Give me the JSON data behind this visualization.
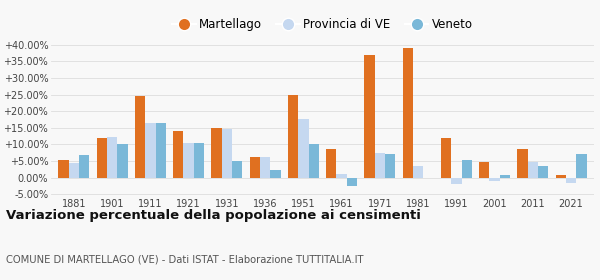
{
  "years": [
    1881,
    1901,
    1911,
    1921,
    1931,
    1936,
    1951,
    1961,
    1971,
    1981,
    1991,
    2001,
    2011,
    2021
  ],
  "martellago": [
    5.2,
    12.0,
    24.5,
    14.0,
    15.0,
    6.2,
    24.8,
    8.5,
    37.0,
    39.0,
    11.8,
    4.7,
    8.5,
    0.8
  ],
  "provincia_ve": [
    4.5,
    12.2,
    16.5,
    10.5,
    14.8,
    6.2,
    17.8,
    1.0,
    7.5,
    3.5,
    -2.0,
    -1.0,
    4.8,
    -1.5
  ],
  "veneto": [
    6.7,
    10.0,
    16.5,
    10.3,
    5.0,
    2.2,
    10.0,
    -2.5,
    7.0,
    null,
    5.2,
    0.8,
    3.5,
    7.2
  ],
  "color_martellago": "#e07020",
  "color_provincia": "#c5d8f0",
  "color_veneto": "#7ab8d8",
  "title": "Variazione percentuale della popolazione ai censimenti",
  "subtitle": "COMUNE DI MARTELLAGO (VE) - Dati ISTAT - Elaborazione TUTTITALIA.IT",
  "ylim": [
    -5.5,
    42.5
  ],
  "yticks": [
    -5.0,
    0.0,
    5.0,
    10.0,
    15.0,
    20.0,
    25.0,
    30.0,
    35.0,
    40.0
  ],
  "background_color": "#f8f8f8",
  "legend_labels": [
    "Martellago",
    "Provincia di VE",
    "Veneto"
  ]
}
